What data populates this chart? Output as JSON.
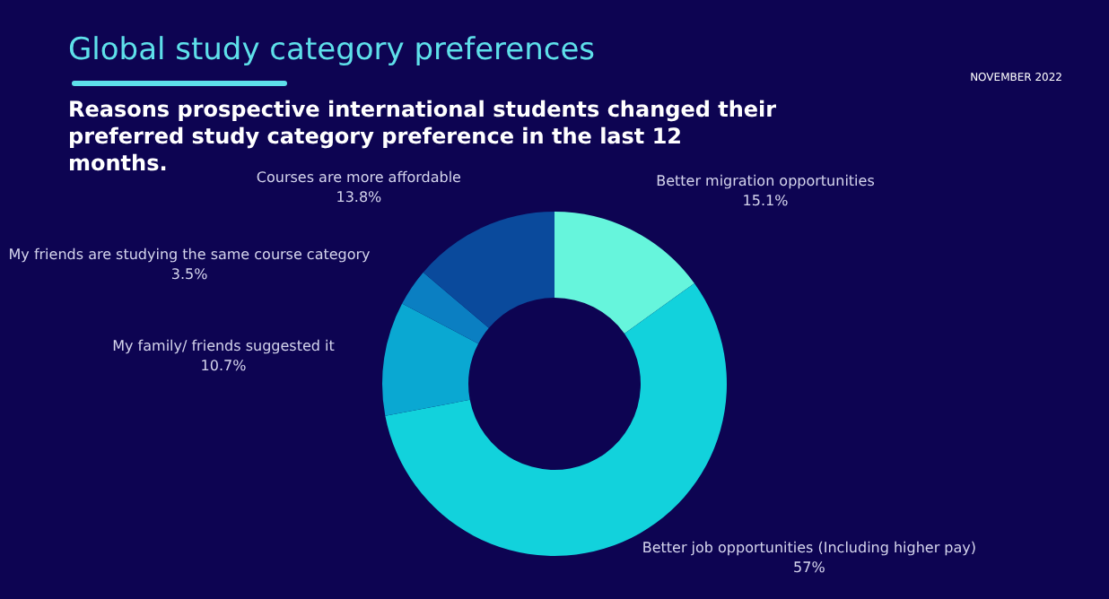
{
  "chart_data": {
    "type": "donut",
    "title": "Global study category preferences",
    "subtitle": "Reasons prospective international students changed their preferred study category preference in the last 12 months.",
    "annotations": [
      "NOVEMBER 2022"
    ],
    "categories": [
      "Better migration opportunities",
      "Better job opportunities (Including higher pay)",
      "My family/ friends suggested it",
      "My friends are studying the same course category",
      "Courses are more affordable"
    ],
    "values": [
      15.1,
      57,
      10.7,
      3.5,
      13.8
    ],
    "value_labels": [
      "15.1%",
      "57%",
      "10.7%",
      "3.5%",
      "13.8%"
    ],
    "colors": [
      "#66f5dc",
      "#12d2dc",
      "#0aa8d2",
      "#0b7fc2",
      "#0a4a9c"
    ],
    "legend": false
  }
}
